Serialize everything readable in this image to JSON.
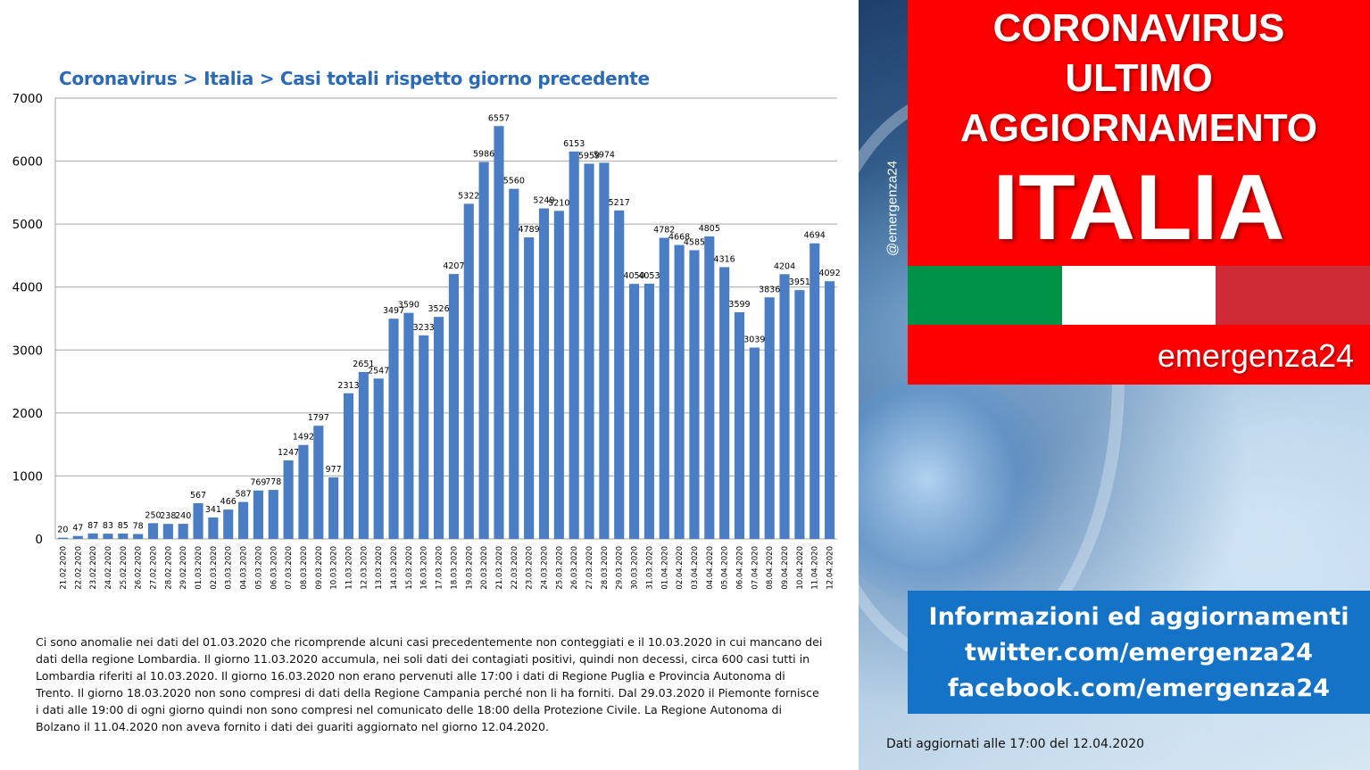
{
  "chart_data": {
    "type": "bar",
    "title": "Coronavirus > Italia > Casi totali rispetto giorno precedente",
    "xlabel": "",
    "ylabel": "",
    "ylim": [
      0,
      7000
    ],
    "yticks": [
      0,
      1000,
      2000,
      3000,
      4000,
      5000,
      6000,
      7000
    ],
    "grid": true,
    "bar_color": "#4a7dc4",
    "categories": [
      "21.02.2020",
      "22.02.2020",
      "23.02.2020",
      "24.02.2020",
      "25.02.2020",
      "26.02.2020",
      "27.02.2020",
      "28.02.2020",
      "29.02.2020",
      "01.03.2020",
      "02.03.2020",
      "03.03.2020",
      "04.03.2020",
      "05.03.2020",
      "06.03.2020",
      "07.03.2020",
      "08.03.2020",
      "09.03.2020",
      "10.03.2020",
      "11.03.2020",
      "12.03.2020",
      "13.03.2020",
      "14.03.2020",
      "15.03.2020",
      "16.03.2020",
      "17.03.2020",
      "18.03.2020",
      "19.03.2020",
      "20.03.2020",
      "21.03.2020",
      "22.03.2020",
      "23.03.2020",
      "24.03.2020",
      "25.03.2020",
      "26.03.2020",
      "27.03.2020",
      "28.03.2020",
      "29.03.2020",
      "30.03.2020",
      "31.03.2020",
      "01.04.2020",
      "02.04.2020",
      "03.04.2020",
      "04.04.2020",
      "05.04.2020",
      "06.04.2020",
      "07.04.2020",
      "08.04.2020",
      "09.04.2020",
      "10.04.2020",
      "11.04.2020",
      "12.04.2020"
    ],
    "values": [
      20,
      47,
      87,
      83,
      85,
      78,
      250,
      238,
      240,
      567,
      341,
      466,
      587,
      769,
      778,
      1247,
      1492,
      1797,
      977,
      2313,
      2651,
      2547,
      3497,
      3590,
      3233,
      3526,
      4207,
      5322,
      5986,
      6557,
      5560,
      4789,
      5249,
      5210,
      6153,
      5959,
      5974,
      5217,
      4050,
      4053,
      4782,
      4668,
      4585,
      4805,
      4316,
      3599,
      3039,
      3836,
      4204,
      3951,
      4694,
      4092
    ]
  },
  "note": "Ci sono anomalie nei dati del 01.03.2020  che ricomprende alcuni casi precedentemente non conteggiati e il 10.03.2020  in cui mancano dei dati della regione Lombardia. Il giorno 11.03.2020   accumula,  nei soli dati dei contagiati positivi, quindi non decessi, circa 600  casi  tutti  in Lombardia riferiti al 10.03.2020.  Il giorno 16.03.2020  non erano pervenuti alle 17:00  i dati di Regione Puglia e Provincia Autonoma di Trento. Il giorno 18.03.2020  non sono compresi di dati della Regione Campania perché non li ha forniti. Dal 29.03.2020  il Piemonte fornisce i dati alle 19:00  di ogni giorno quindi non sono compresi nel comunicato  delle 18:00  della Protezione Civile. La Regione Autonoma di Bolzano il 11.04.2020  non aveva fornito i dati dei guariti aggiornato  nel giorno 12.04.2020.",
  "banner": {
    "line1": "CORONAVIRUS",
    "line2": "ULTIMO",
    "line3": "AGGIORNAMENTO",
    "line4": "ITALIA",
    "brand": "emergenza24",
    "handle": "@emergenza24"
  },
  "flag_colors": [
    "#009246",
    "#ffffff",
    "#ce2b37"
  ],
  "info": {
    "line1": "Informazioni ed aggiornamenti",
    "line2": "twitter.com/emergenza24",
    "line3": "facebook.com/emergenza24"
  },
  "updated": "Dati aggiornati alle 17:00 del 12.04.2020"
}
